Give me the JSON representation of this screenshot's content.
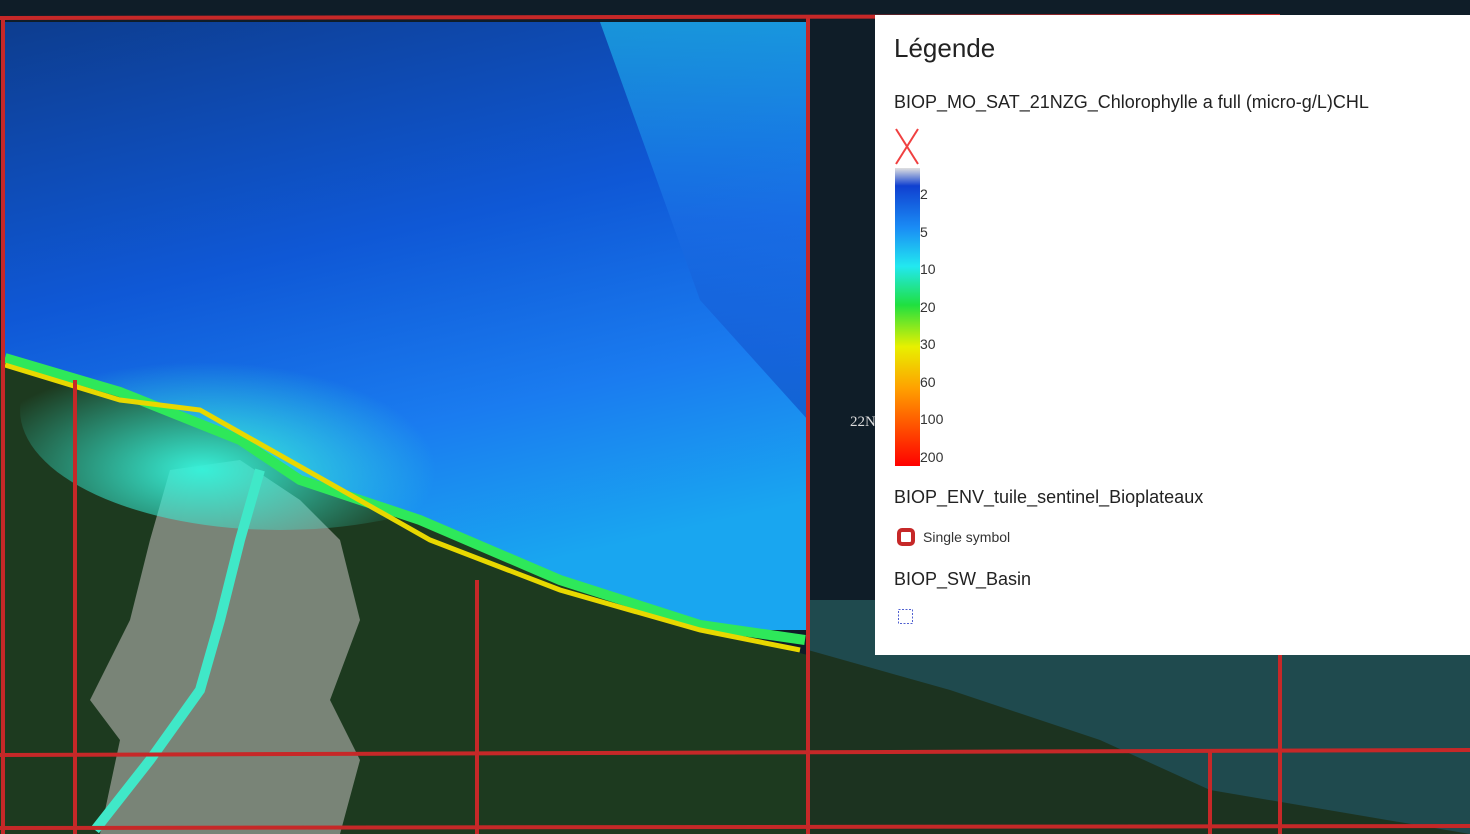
{
  "map": {
    "tile_label": "22N"
  },
  "legend": {
    "title": "Légende",
    "layers": [
      {
        "name": "BIOP_MO_SAT_21NZG_Chlorophylle a full (micro-g/L)CHL",
        "ramp_labels": [
          "2",
          "5",
          "10",
          "20",
          "30",
          "60",
          "100",
          "200"
        ]
      },
      {
        "name": "BIOP_ENV_tuile_sentinel_Bioplateaux",
        "symbol_label": "Single symbol"
      },
      {
        "name": "BIOP_SW_Basin"
      }
    ]
  }
}
